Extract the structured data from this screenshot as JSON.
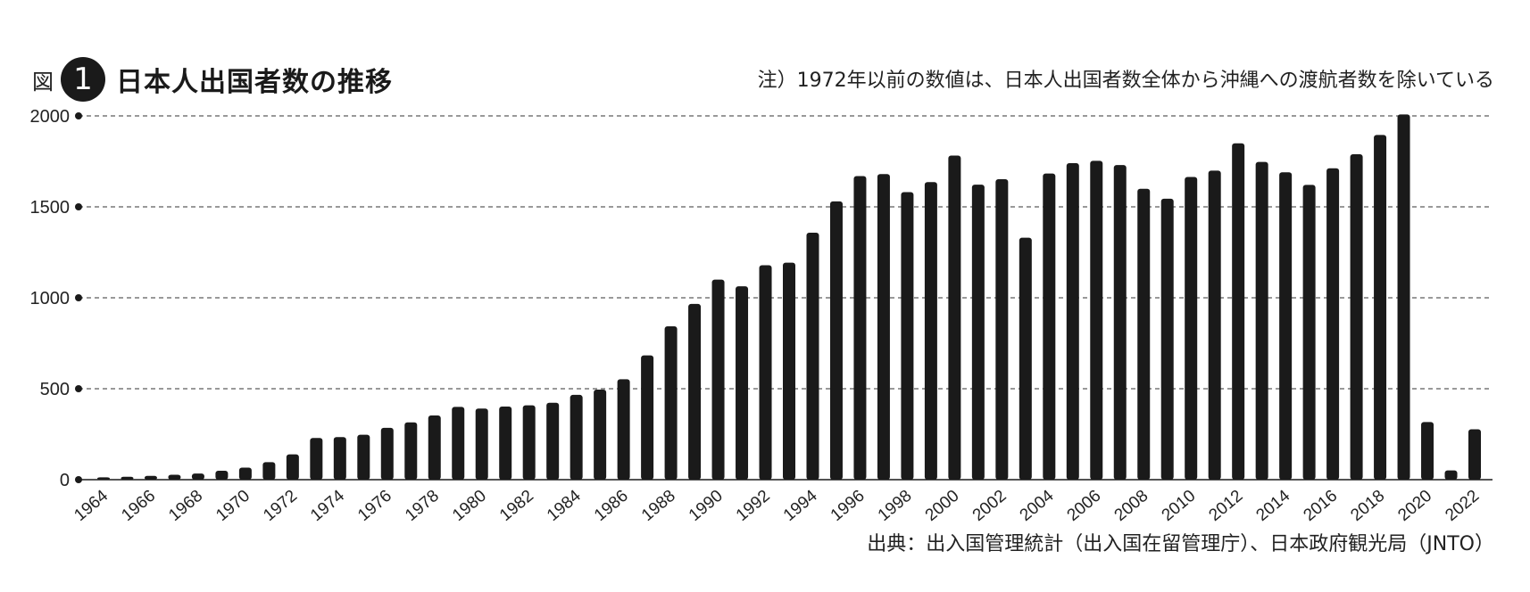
{
  "header": {
    "prefix": "図",
    "number": "1",
    "title": "日本人出国者数の推移"
  },
  "note": "注）1972年以前の数値は、日本人出国者数全体から沖縄への渡航者数を除いている",
  "source": "出典：出入国管理統計（出入国在留管理庁）、日本政府観光局（JNTO）",
  "chart_data": {
    "type": "bar",
    "ylim": [
      0,
      2000
    ],
    "yticks": [
      0,
      500,
      1000,
      1500,
      2000
    ],
    "grid": true,
    "bar_color": "#1a1a1a",
    "x": [
      1964,
      1965,
      1966,
      1967,
      1968,
      1969,
      1970,
      1971,
      1972,
      1973,
      1974,
      1975,
      1976,
      1977,
      1978,
      1979,
      1980,
      1981,
      1982,
      1983,
      1984,
      1985,
      1986,
      1987,
      1988,
      1989,
      1990,
      1991,
      1992,
      1993,
      1994,
      1995,
      1996,
      1997,
      1998,
      1999,
      2000,
      2001,
      2002,
      2003,
      2004,
      2005,
      2006,
      2007,
      2008,
      2009,
      2010,
      2011,
      2012,
      2013,
      2014,
      2015,
      2016,
      2017,
      2018,
      2019,
      2020,
      2021,
      2022
    ],
    "values": [
      13,
      16,
      21,
      27,
      34,
      49,
      66,
      96,
      139,
      229,
      234,
      247,
      285,
      315,
      353,
      400,
      391,
      402,
      409,
      423,
      466,
      495,
      552,
      683,
      843,
      966,
      1100,
      1063,
      1179,
      1193,
      1358,
      1530,
      1669,
      1680,
      1581,
      1636,
      1782,
      1622,
      1652,
      1330,
      1683,
      1740,
      1753,
      1730,
      1599,
      1545,
      1664,
      1699,
      1849,
      1747,
      1690,
      1621,
      1712,
      1789,
      1895,
      2008,
      317,
      51,
      277
    ],
    "xtick_labels": [
      "1964",
      "1966",
      "1968",
      "1970",
      "1972",
      "1974",
      "1976",
      "1978",
      "1980",
      "1982",
      "1984",
      "1986",
      "1988",
      "1990",
      "1992",
      "1994",
      "1996",
      "1998",
      "2000",
      "2002",
      "2004",
      "2006",
      "2008",
      "2010",
      "2012",
      "2014",
      "2016",
      "2018",
      "2020",
      "2022"
    ]
  }
}
